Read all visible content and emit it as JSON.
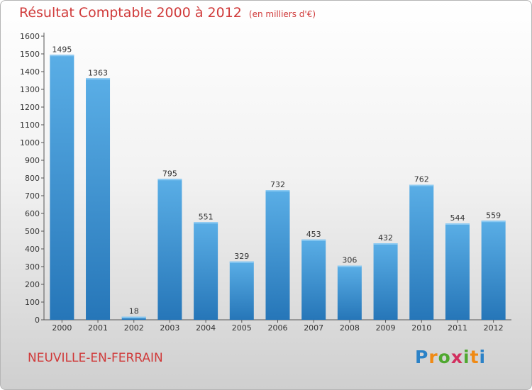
{
  "header": {
    "title": "Résultat Comptable 2000 à 2012",
    "subtitle": "(en milliers d'€)"
  },
  "footer": {
    "commune": "NEUVILLE-EN-FERRAIN",
    "logo_text": "Proxiti"
  },
  "colors": {
    "title": "#d03a3a",
    "bar_top": "#5aaee6",
    "bar_bottom": "#2676b8"
  },
  "chart_data": {
    "type": "bar",
    "categories": [
      "2000",
      "2001",
      "2002",
      "2003",
      "2004",
      "2005",
      "2006",
      "2007",
      "2008",
      "2009",
      "2010",
      "2011",
      "2012"
    ],
    "values": [
      1495,
      1363,
      18,
      795,
      551,
      329,
      732,
      453,
      306,
      432,
      762,
      544,
      559
    ],
    "title": "Résultat Comptable 2000 à 2012",
    "subtitle": "(en milliers d'€)",
    "xlabel": "",
    "ylabel": "",
    "ylim": [
      0,
      1600
    ],
    "yticks": [
      0,
      100,
      200,
      300,
      400,
      500,
      600,
      700,
      800,
      900,
      1000,
      1100,
      1200,
      1300,
      1400,
      1500,
      1600
    ],
    "grid": false,
    "legend": "none"
  }
}
